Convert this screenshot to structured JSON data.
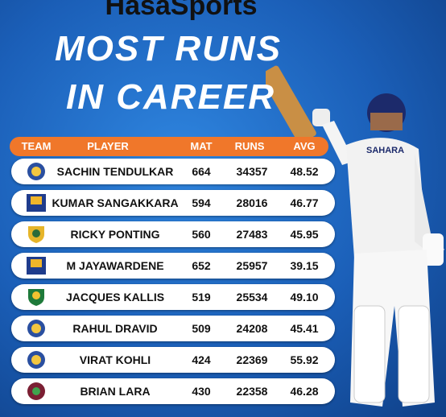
{
  "header": {
    "brand": "HasaSports",
    "title_line1": "MOST RUNS",
    "title_line2": "IN CAREER"
  },
  "table": {
    "columns": [
      "TEAM",
      "PLAYER",
      "MAT",
      "RUNS",
      "AVG"
    ],
    "rows": [
      [
        "SACHIN TENDULKAR",
        "664",
        "34357",
        "48.52"
      ],
      [
        "KUMAR SANGAKKARA",
        "594",
        "28016",
        "46.77"
      ],
      [
        "RICKY PONTING",
        "560",
        "27483",
        "45.95"
      ],
      [
        "M JAYAWARDENE",
        "652",
        "25957",
        "39.15"
      ],
      [
        "JACQUES KALLIS",
        "519",
        "25534",
        "49.10"
      ],
      [
        "RAHUL DRAVID",
        "509",
        "24208",
        "45.41"
      ],
      [
        "VIRAT KOHLI",
        "424",
        "22369",
        "55.92"
      ],
      [
        "BRIAN LARA",
        "430",
        "22358",
        "46.28"
      ]
    ]
  }
}
